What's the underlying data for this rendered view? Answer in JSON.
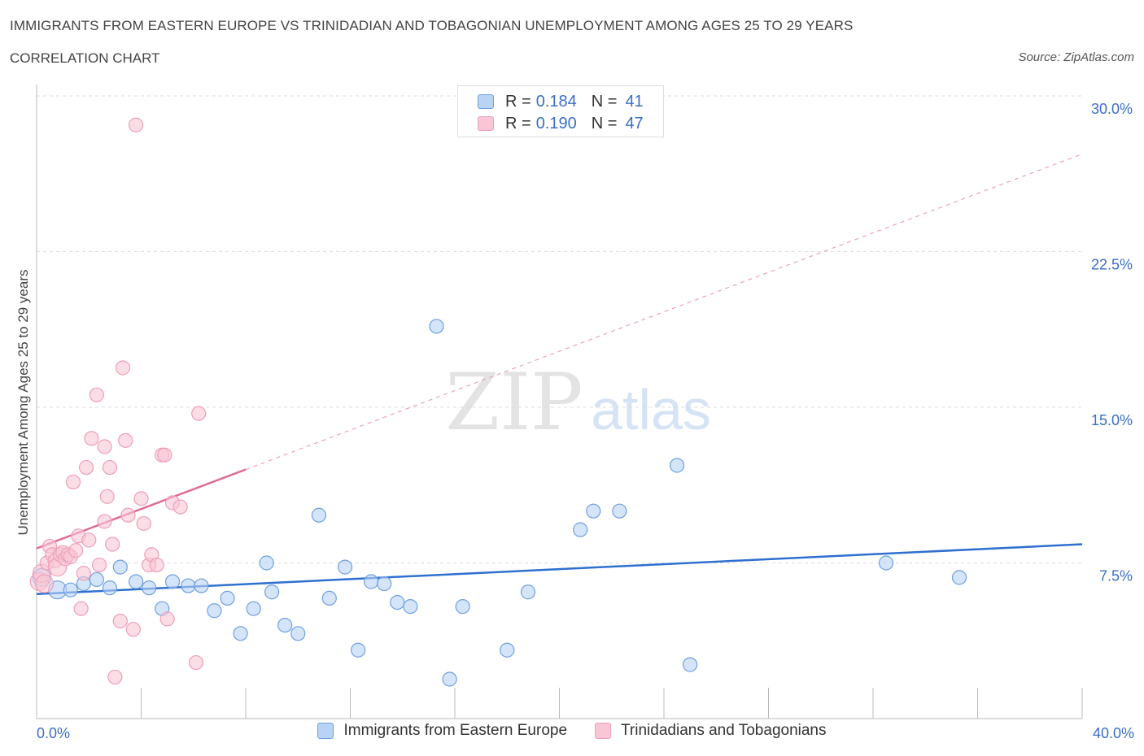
{
  "title": "IMMIGRANTS FROM EASTERN EUROPE VS TRINIDADIAN AND TOBAGONIAN UNEMPLOYMENT AMONG AGES 25 TO 29 YEARS",
  "subtitle": "CORRELATION CHART",
  "source": "Source: ZipAtlas.com",
  "watermark": {
    "zip": "ZIP",
    "atlas": "atlas"
  },
  "legend": {
    "rows": [
      {
        "r_label": "R =",
        "r_value": "0.184",
        "n_label": "N =",
        "n_value": "41"
      },
      {
        "r_label": "R =",
        "r_value": "0.190",
        "n_label": "N =",
        "n_value": "47"
      }
    ]
  },
  "chart_data": {
    "type": "scatter",
    "title": "IMMIGRANTS FROM EASTERN EUROPE VS TRINIDADIAN AND TOBAGONIAN UNEMPLOYMENT AMONG AGES 25 TO 29 YEARS",
    "xlabel": "",
    "ylabel": "Unemployment Among Ages 25 to 29 years",
    "xlim": [
      0,
      40
    ],
    "ylim": [
      0,
      30
    ],
    "x_tick_labels": [
      "0.0%",
      "40.0%"
    ],
    "y_ticks": [
      7.5,
      15,
      22.5,
      30
    ],
    "y_tick_labels": [
      "7.5%",
      "15.0%",
      "22.5%",
      "30.0%"
    ],
    "grid": true,
    "legend_position": "top-center",
    "series": [
      {
        "name": "Immigrants from Eastern Europe",
        "color": "#6f9fe0",
        "fill": "#b9d3f5",
        "R": 0.184,
        "N": 41,
        "trend": {
          "x0": 0,
          "y0": 6.0,
          "x1": 40,
          "y1": 8.4
        },
        "points": [
          [
            0.2,
            6.8
          ],
          [
            0.8,
            6.2
          ],
          [
            1.3,
            6.2
          ],
          [
            1.8,
            6.5
          ],
          [
            2.3,
            6.7
          ],
          [
            2.8,
            6.3
          ],
          [
            3.2,
            7.3
          ],
          [
            3.8,
            6.6
          ],
          [
            4.3,
            6.3
          ],
          [
            4.8,
            5.3
          ],
          [
            5.2,
            6.6
          ],
          [
            5.8,
            6.4
          ],
          [
            6.3,
            6.4
          ],
          [
            6.8,
            5.2
          ],
          [
            7.3,
            5.8
          ],
          [
            7.8,
            4.1
          ],
          [
            8.3,
            5.3
          ],
          [
            8.8,
            7.5
          ],
          [
            9.0,
            6.1
          ],
          [
            9.5,
            4.5
          ],
          [
            10.0,
            4.1
          ],
          [
            10.8,
            9.8
          ],
          [
            11.2,
            5.8
          ],
          [
            11.8,
            7.3
          ],
          [
            12.3,
            3.3
          ],
          [
            12.8,
            6.6
          ],
          [
            13.3,
            6.5
          ],
          [
            13.8,
            5.6
          ],
          [
            14.3,
            5.4
          ],
          [
            15.3,
            18.9
          ],
          [
            15.8,
            1.9
          ],
          [
            16.3,
            5.4
          ],
          [
            18.0,
            3.3
          ],
          [
            18.8,
            6.1
          ],
          [
            20.8,
            9.1
          ],
          [
            21.3,
            10.0
          ],
          [
            22.3,
            10.0
          ],
          [
            24.5,
            12.2
          ],
          [
            25.0,
            2.6
          ],
          [
            32.5,
            7.5
          ],
          [
            35.3,
            6.8
          ]
        ]
      },
      {
        "name": "Trinidadians and Tobagonians",
        "color": "#ee9fb8",
        "fill": "#f8c6d5",
        "R": 0.19,
        "N": 47,
        "trend": {
          "x0": 0,
          "y0": 8.2,
          "x1": 8.0,
          "y1": 12.0
        },
        "trend_extension": {
          "x0": 8.0,
          "y0": 12.0,
          "x1": 40,
          "y1": 27.2
        },
        "points": [
          [
            0.1,
            6.6
          ],
          [
            0.2,
            7.0
          ],
          [
            0.4,
            7.5
          ],
          [
            0.5,
            8.3
          ],
          [
            0.6,
            7.9
          ],
          [
            0.7,
            7.6
          ],
          [
            0.8,
            7.3
          ],
          [
            0.9,
            7.9
          ],
          [
            1.0,
            8.0
          ],
          [
            1.1,
            7.7
          ],
          [
            1.2,
            7.9
          ],
          [
            1.3,
            7.8
          ],
          [
            1.4,
            11.4
          ],
          [
            1.5,
            8.1
          ],
          [
            1.6,
            8.8
          ],
          [
            1.7,
            5.3
          ],
          [
            1.8,
            7.0
          ],
          [
            1.9,
            12.1
          ],
          [
            2.0,
            8.6
          ],
          [
            2.1,
            13.5
          ],
          [
            2.3,
            15.6
          ],
          [
            2.4,
            7.4
          ],
          [
            2.6,
            9.5
          ],
          [
            2.6,
            13.1
          ],
          [
            2.7,
            10.7
          ],
          [
            2.8,
            12.1
          ],
          [
            2.9,
            8.4
          ],
          [
            3.0,
            2.0
          ],
          [
            3.2,
            4.7
          ],
          [
            3.3,
            16.9
          ],
          [
            3.4,
            13.4
          ],
          [
            3.5,
            9.8
          ],
          [
            3.7,
            4.3
          ],
          [
            3.8,
            28.6
          ],
          [
            4.0,
            10.6
          ],
          [
            4.1,
            9.4
          ],
          [
            4.3,
            7.4
          ],
          [
            4.4,
            7.9
          ],
          [
            4.6,
            7.4
          ],
          [
            4.8,
            12.7
          ],
          [
            4.9,
            12.7
          ],
          [
            5.0,
            4.8
          ],
          [
            5.2,
            10.4
          ],
          [
            5.5,
            10.2
          ],
          [
            6.2,
            14.7
          ],
          [
            6.1,
            2.7
          ],
          [
            0.3,
            6.5
          ]
        ]
      }
    ]
  }
}
